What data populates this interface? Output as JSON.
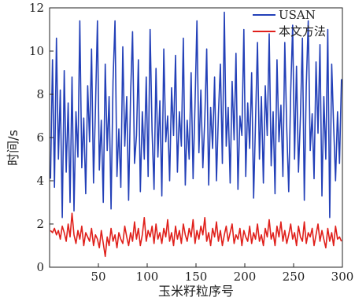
{
  "chart_data": {
    "type": "line",
    "title": "",
    "xlabel": "玉米籽粒序号",
    "ylabel": "时间/s",
    "xlim": [
      0,
      300
    ],
    "ylim": [
      0,
      12
    ],
    "x_ticks": [
      50,
      100,
      150,
      200,
      250,
      300
    ],
    "y_ticks": [
      0,
      2,
      4,
      6,
      8,
      10,
      12
    ],
    "grid": false,
    "legend_position": "top-right",
    "series": [
      {
        "name": "USAN",
        "color": "#2340b8",
        "x": [
          1,
          3,
          5,
          7,
          9,
          11,
          13,
          15,
          17,
          19,
          21,
          23,
          25,
          27,
          29,
          31,
          33,
          35,
          37,
          39,
          41,
          43,
          45,
          47,
          49,
          51,
          53,
          55,
          57,
          59,
          61,
          63,
          65,
          67,
          69,
          71,
          73,
          75,
          77,
          79,
          81,
          83,
          85,
          87,
          89,
          91,
          93,
          95,
          97,
          99,
          101,
          103,
          105,
          107,
          109,
          111,
          113,
          115,
          117,
          119,
          121,
          123,
          125,
          127,
          129,
          131,
          133,
          135,
          137,
          139,
          141,
          143,
          145,
          147,
          149,
          151,
          153,
          155,
          157,
          159,
          161,
          163,
          165,
          167,
          169,
          171,
          173,
          175,
          177,
          179,
          181,
          183,
          185,
          187,
          189,
          191,
          193,
          195,
          197,
          199,
          201,
          203,
          205,
          207,
          209,
          211,
          213,
          215,
          217,
          219,
          221,
          223,
          225,
          227,
          229,
          231,
          233,
          235,
          237,
          239,
          241,
          243,
          245,
          247,
          249,
          251,
          253,
          255,
          257,
          259,
          261,
          263,
          265,
          267,
          269,
          271,
          273,
          275,
          277,
          279,
          281,
          283,
          285,
          287,
          289,
          291,
          293,
          295,
          297,
          299
        ],
        "values": [
          4.1,
          9.6,
          3.7,
          10.6,
          5.0,
          8.2,
          2.3,
          9.1,
          4.4,
          7.6,
          3.0,
          8.8,
          2.6,
          7.2,
          5.1,
          11.4,
          4.6,
          6.9,
          3.4,
          8.4,
          5.8,
          10.1,
          3.9,
          7.4,
          11.4,
          4.5,
          6.8,
          3.0,
          9.4,
          5.4,
          7.9,
          2.7,
          8.6,
          11.4,
          4.2,
          6.4,
          3.7,
          10.2,
          5.6,
          7.9,
          3.1,
          8.0,
          10.9,
          4.8,
          6.1,
          9.6,
          3.5,
          7.2,
          5.0,
          8.8,
          4.2,
          11.0,
          6.3,
          3.6,
          9.2,
          5.1,
          7.7,
          3.3,
          10.1,
          5.8,
          7.0,
          4.0,
          8.3,
          6.1,
          9.8,
          4.4,
          7.2,
          5.6,
          10.6,
          3.8,
          6.8,
          5.0,
          9.0,
          4.1,
          7.6,
          11.4,
          5.3,
          8.2,
          4.6,
          6.9,
          10.1,
          3.8,
          7.4,
          5.5,
          8.8,
          4.0,
          7.1,
          9.4,
          4.8,
          11.8,
          5.6,
          7.4,
          3.9,
          8.6,
          5.9,
          9.9,
          3.6,
          7.0,
          6.1,
          11.0,
          4.2,
          7.6,
          5.5,
          9.0,
          3.2,
          6.7,
          10.4,
          5.0,
          7.9,
          3.9,
          8.4,
          6.1,
          10.8,
          4.7,
          7.2,
          3.4,
          9.6,
          5.8,
          7.5,
          4.2,
          10.4,
          6.4,
          3.5,
          8.1,
          11.2,
          5.0,
          9.3,
          4.4,
          7.0,
          10.6,
          3.1,
          8.4,
          11.4,
          5.4,
          7.1,
          4.1,
          9.5,
          6.2,
          10.3,
          3.3,
          7.9,
          5.0,
          11.0,
          2.3,
          9.4,
          6.6,
          4.0,
          7.2,
          4.8,
          8.7
        ]
      },
      {
        "name": "本文方法",
        "color": "#e0201b",
        "x": [
          1,
          3,
          5,
          7,
          9,
          11,
          13,
          15,
          17,
          19,
          21,
          23,
          25,
          27,
          29,
          31,
          33,
          35,
          37,
          39,
          41,
          43,
          45,
          47,
          49,
          51,
          53,
          55,
          57,
          59,
          61,
          63,
          65,
          67,
          69,
          71,
          73,
          75,
          77,
          79,
          81,
          83,
          85,
          87,
          89,
          91,
          93,
          95,
          97,
          99,
          101,
          103,
          105,
          107,
          109,
          111,
          113,
          115,
          117,
          119,
          121,
          123,
          125,
          127,
          129,
          131,
          133,
          135,
          137,
          139,
          141,
          143,
          145,
          147,
          149,
          151,
          153,
          155,
          157,
          159,
          161,
          163,
          165,
          167,
          169,
          171,
          173,
          175,
          177,
          179,
          181,
          183,
          185,
          187,
          189,
          191,
          193,
          195,
          197,
          199,
          201,
          203,
          205,
          207,
          209,
          211,
          213,
          215,
          217,
          219,
          221,
          223,
          225,
          227,
          229,
          231,
          233,
          235,
          237,
          239,
          241,
          243,
          245,
          247,
          249,
          251,
          253,
          255,
          257,
          259,
          261,
          263,
          265,
          267,
          269,
          271,
          273,
          275,
          277,
          279,
          281,
          283,
          285,
          287,
          289,
          291,
          293,
          295,
          297,
          299
        ],
        "values": [
          1.7,
          1.6,
          1.8,
          1.5,
          1.7,
          1.3,
          1.9,
          1.6,
          1.2,
          2.0,
          1.4,
          2.5,
          1.5,
          1.1,
          1.7,
          1.3,
          1.9,
          1.0,
          1.6,
          1.4,
          1.2,
          1.8,
          1.0,
          1.5,
          1.3,
          0.9,
          1.7,
          1.1,
          0.5,
          1.4,
          1.0,
          1.8,
          1.2,
          1.5,
          0.9,
          1.6,
          1.3,
          1.1,
          1.9,
          1.4,
          1.0,
          1.6,
          1.2,
          2.1,
          1.3,
          1.8,
          1.0,
          1.5,
          2.3,
          1.2,
          1.7,
          1.4,
          1.9,
          1.1,
          2.0,
          1.3,
          1.6,
          1.1,
          1.8,
          1.4,
          2.2,
          1.2,
          1.6,
          1.0,
          1.9,
          1.3,
          1.7,
          1.1,
          2.0,
          1.5,
          1.2,
          1.8,
          1.4,
          2.2,
          1.1,
          1.7,
          1.3,
          1.9,
          1.5,
          2.3,
          1.2,
          1.6,
          1.0,
          1.8,
          1.4,
          2.1,
          1.2,
          1.7,
          1.0,
          1.5,
          1.9,
          1.2,
          1.6,
          2.0,
          1.1,
          1.5,
          1.3,
          1.8,
          1.0,
          1.7,
          1.4,
          1.2,
          1.9,
          1.1,
          1.6,
          1.3,
          2.0,
          1.2,
          1.5,
          1.0,
          1.8,
          1.4,
          2.2,
          1.3,
          1.6,
          1.0,
          1.9,
          1.4,
          2.1,
          1.2,
          1.7,
          1.1,
          1.5,
          2.0,
          1.3,
          1.6,
          1.0,
          1.9,
          1.4,
          1.2,
          2.1,
          1.1,
          1.6,
          1.4,
          1.8,
          1.0,
          1.5,
          2.0,
          1.2,
          1.7,
          1.3,
          0.9,
          1.8,
          1.2,
          1.6,
          1.0,
          1.9,
          1.3,
          1.4,
          1.2
        ]
      }
    ]
  }
}
